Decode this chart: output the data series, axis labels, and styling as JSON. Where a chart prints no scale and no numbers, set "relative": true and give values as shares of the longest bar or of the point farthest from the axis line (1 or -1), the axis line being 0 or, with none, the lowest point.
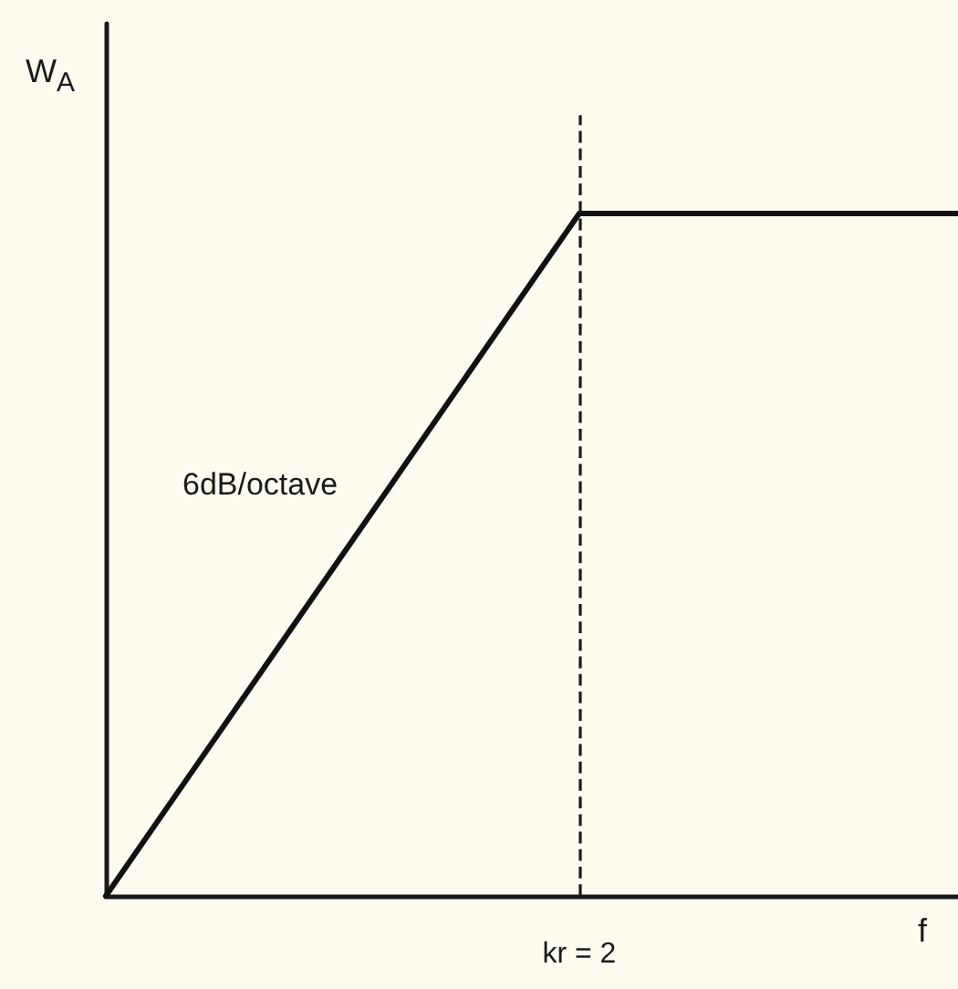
{
  "chart_data": {
    "type": "line",
    "relative": true,
    "categories": [
      null,
      null,
      null,
      null,
      null,
      null,
      null,
      null,
      null,
      null
    ],
    "series": [
      {
        "color": "#111111",
        "values": [
          0,
          0.2,
          0.4,
          0.6,
          0.8,
          1,
          1,
          1,
          1,
          1
        ]
      }
    ],
    "xlabel": "f",
    "ylabel": "W$_{A}$",
    "annotations": [
      "6dB/octave",
      "kr = 2"
    ],
    "tick_labels": false,
    "marker": "none",
    "line_style": "solid"
  }
}
